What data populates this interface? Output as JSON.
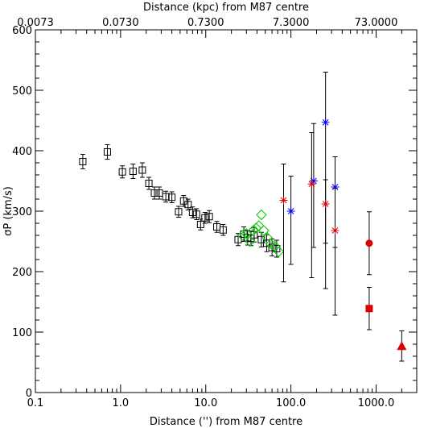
{
  "chart_data": {
    "type": "scatter",
    "xscale": "log",
    "xlim": [
      0.1,
      3000
    ],
    "ylim": [
      0,
      600
    ],
    "xlabel": "Distance ('') from M87 centre",
    "ylabel": "σP (km/s)",
    "x2label": "Distance (kpc) from M87 centre",
    "x_ticklabels": [
      "0.1",
      "1.0",
      "10.0",
      "100.0",
      "1000.0"
    ],
    "y_ticklabels": [
      "0",
      "100",
      "200",
      "300",
      "400",
      "500",
      "600"
    ],
    "x2_ticklabels": [
      "0.0073",
      "0.0730",
      "0.7300",
      "7.3000",
      "73.0000"
    ],
    "colors": {
      "squares": "#000000",
      "diamonds": "#00cc00",
      "blue": "#0000ff",
      "red": "#dd0000"
    },
    "series": [
      {
        "marker": "square-open",
        "color": "#000000",
        "points": [
          {
            "x": 0.36,
            "y": 382,
            "err": 12
          },
          {
            "x": 0.7,
            "y": 398,
            "err": 12
          },
          {
            "x": 1.05,
            "y": 365,
            "err": 10
          },
          {
            "x": 1.4,
            "y": 366,
            "err": 12
          },
          {
            "x": 1.8,
            "y": 368,
            "err": 12
          },
          {
            "x": 2.15,
            "y": 346,
            "err": 10
          },
          {
            "x": 2.5,
            "y": 330,
            "err": 10
          },
          {
            "x": 2.85,
            "y": 330,
            "err": 10
          },
          {
            "x": 3.4,
            "y": 324,
            "err": 9
          },
          {
            "x": 4.0,
            "y": 323,
            "err": 9
          },
          {
            "x": 4.8,
            "y": 299,
            "err": 9
          },
          {
            "x": 5.5,
            "y": 317,
            "err": 9
          },
          {
            "x": 6.2,
            "y": 311,
            "err": 9
          },
          {
            "x": 7.0,
            "y": 298,
            "err": 9
          },
          {
            "x": 7.8,
            "y": 295,
            "err": 9
          },
          {
            "x": 8.7,
            "y": 278,
            "err": 9
          },
          {
            "x": 9.8,
            "y": 289,
            "err": 9
          },
          {
            "x": 11.0,
            "y": 291,
            "err": 10
          },
          {
            "x": 13.5,
            "y": 274,
            "err": 9
          },
          {
            "x": 16.0,
            "y": 269,
            "err": 9
          },
          {
            "x": 24.0,
            "y": 253,
            "err": 10
          },
          {
            "x": 28.0,
            "y": 262,
            "err": 12
          },
          {
            "x": 31.0,
            "y": 256,
            "err": 12
          },
          {
            "x": 34.0,
            "y": 255,
            "err": 12
          },
          {
            "x": 37.0,
            "y": 261,
            "err": 12
          },
          {
            "x": 45.0,
            "y": 253,
            "err": 12
          },
          {
            "x": 52.0,
            "y": 247,
            "err": 14
          },
          {
            "x": 60.0,
            "y": 240,
            "err": 14
          },
          {
            "x": 68.0,
            "y": 238,
            "err": 14
          }
        ]
      },
      {
        "marker": "diamond-open",
        "color": "#00cc00",
        "points": [
          {
            "x": 27.0,
            "y": 260
          },
          {
            "x": 30.0,
            "y": 263
          },
          {
            "x": 33.0,
            "y": 250
          },
          {
            "x": 36.0,
            "y": 268
          },
          {
            "x": 39.0,
            "y": 272
          },
          {
            "x": 42.0,
            "y": 276
          },
          {
            "x": 45.0,
            "y": 294
          },
          {
            "x": 48.0,
            "y": 268
          },
          {
            "x": 53.0,
            "y": 256
          },
          {
            "x": 58.0,
            "y": 246
          },
          {
            "x": 65.0,
            "y": 242
          },
          {
            "x": 72.0,
            "y": 233
          }
        ]
      },
      {
        "marker": "asterisk",
        "color": "#0000ff",
        "points": [
          {
            "x": 100,
            "y": 300,
            "err_low": 88,
            "err_high": 58
          },
          {
            "x": 185,
            "y": 350,
            "err_low": 110,
            "err_high": 95
          },
          {
            "x": 255,
            "y": 447,
            "err_low": 200,
            "err_high": 83
          },
          {
            "x": 330,
            "y": 340,
            "err_low": 100,
            "err_high": 50
          }
        ]
      },
      {
        "marker": "asterisk",
        "color": "#dd0000",
        "points": [
          {
            "x": 82,
            "y": 318,
            "err_low": 135,
            "err_high": 60
          },
          {
            "x": 175,
            "y": 345,
            "err_low": 155,
            "err_high": 85
          },
          {
            "x": 255,
            "y": 312,
            "err_low": 140,
            "err_high": 40
          },
          {
            "x": 330,
            "y": 268,
            "err_low": 140,
            "err_high": 70
          }
        ]
      },
      {
        "marker": "circle-filled",
        "color": "#dd0000",
        "points": [
          {
            "x": 830,
            "y": 247,
            "err_low": 52,
            "err_high": 52
          }
        ]
      },
      {
        "marker": "square-filled",
        "color": "#dd0000",
        "points": [
          {
            "x": 830,
            "y": 139,
            "err_low": 35,
            "err_high": 35
          }
        ]
      },
      {
        "marker": "triangle-filled",
        "color": "#dd0000",
        "points": [
          {
            "x": 2000,
            "y": 77,
            "err_low": 25,
            "err_high": 25
          }
        ]
      }
    ]
  }
}
